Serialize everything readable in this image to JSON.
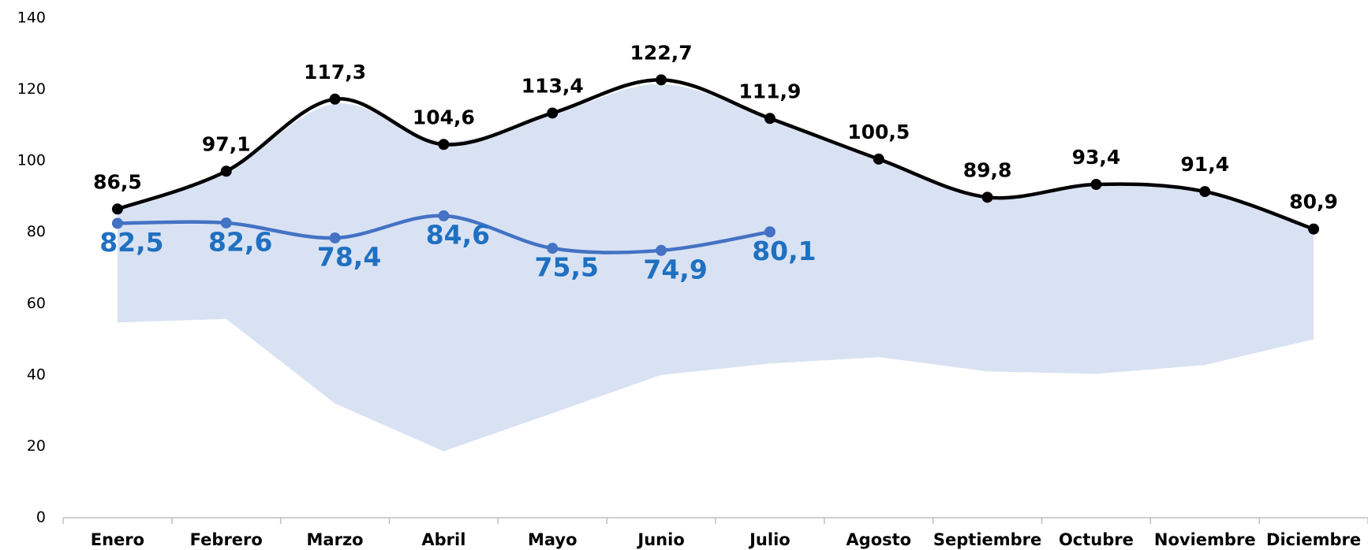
{
  "chart_data": {
    "type": "line",
    "categories": [
      "Enero",
      "Febrero",
      "Marzo",
      "Abril",
      "Mayo",
      "Junio",
      "Julio",
      "Agosto",
      "Septiembre",
      "Octubre",
      "Noviembre",
      "Diciembre"
    ],
    "band": {
      "color": "#d9e2f3",
      "high": [
        86.5,
        97,
        116,
        105.5,
        113,
        121.5,
        111.9,
        100.5,
        89.8,
        93.4,
        91.4,
        80.9
      ],
      "low": [
        54.7,
        55.7,
        32,
        18.6,
        29.3,
        40,
        43.2,
        45,
        41,
        40.3,
        42.8,
        50
      ]
    },
    "series": [
      {
        "color": "#000000",
        "label_color": "#000000",
        "values": [
          86.5,
          97.1,
          117.3,
          104.6,
          113.4,
          122.7,
          111.9,
          100.5,
          89.8,
          93.4,
          91.4,
          80.9
        ],
        "value_labels": [
          "86,5",
          "97,1",
          "117,3",
          "104,6",
          "113,4",
          "122,7",
          "111,9",
          "100,5",
          "89,8",
          "93,4",
          "91,4",
          "80,9"
        ]
      },
      {
        "color": "#4472c4",
        "label_color": "#1f70c1",
        "values": [
          82.5,
          82.6,
          78.4,
          84.6,
          75.5,
          74.9,
          80.1,
          null,
          null,
          null,
          null,
          null
        ],
        "value_labels": [
          "82,5",
          "82,6",
          "78,4",
          "84,6",
          "75,5",
          "74,9",
          "80,1",
          null,
          null,
          null,
          null,
          null
        ]
      }
    ],
    "ylim": [
      0,
      140
    ],
    "yticks": [
      0,
      20,
      40,
      60,
      80,
      100,
      120,
      140
    ],
    "grid": false
  }
}
